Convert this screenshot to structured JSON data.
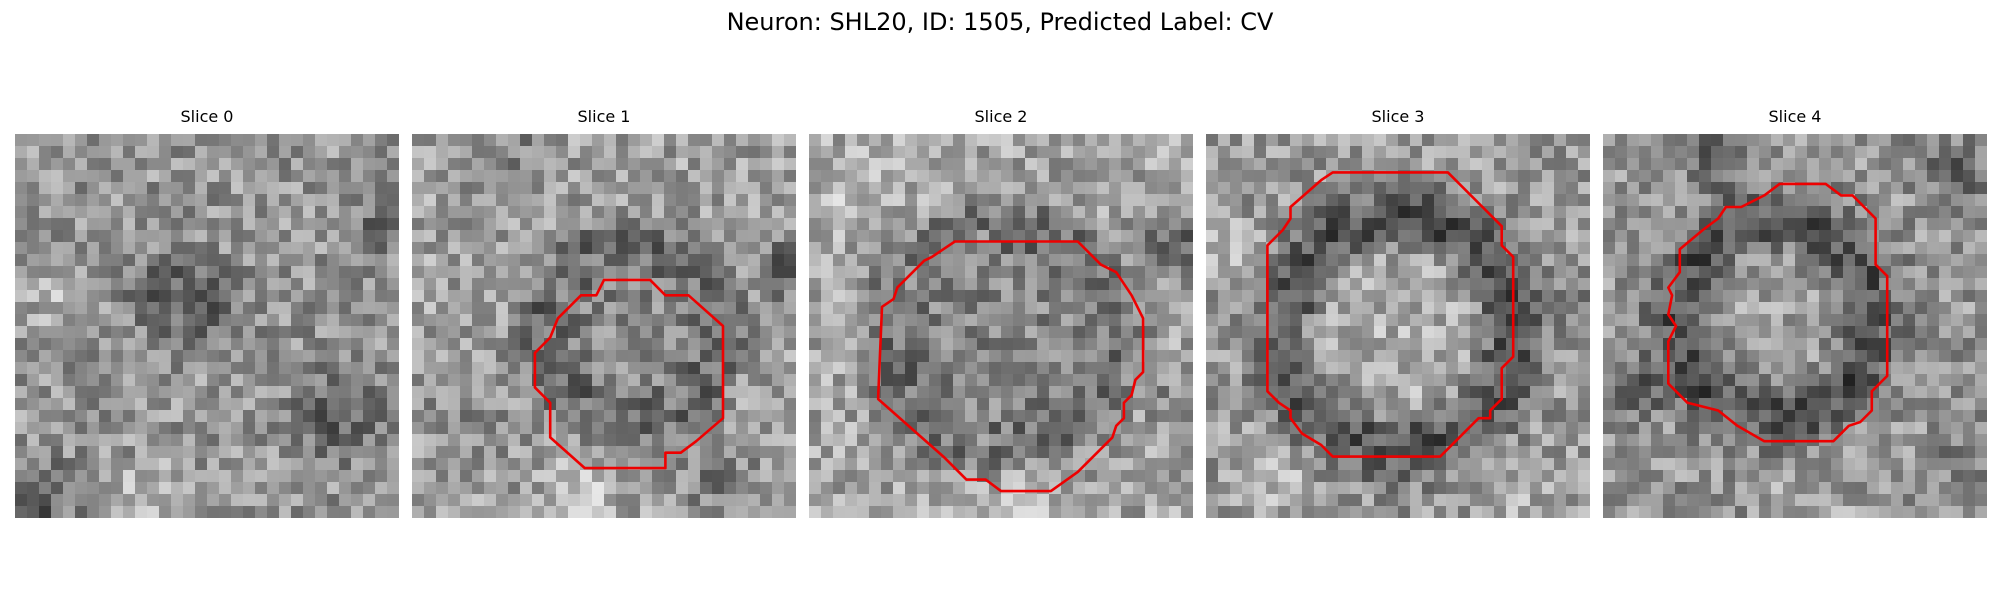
{
  "figure": {
    "title": "Neuron: SHL20, ID: 1505, Predicted Label: CV"
  },
  "colors": {
    "background": "#ffffff",
    "contour": "#ee0000",
    "image_colormap": "grayscale"
  },
  "panels": [
    {
      "title": "Slice 0",
      "image": "grayscale-em-crop",
      "has_contour": false
    },
    {
      "title": "Slice 1",
      "image": "grayscale-em-crop",
      "has_contour": true
    },
    {
      "title": "Slice 2",
      "image": "grayscale-em-crop",
      "has_contour": true
    },
    {
      "title": "Slice 3",
      "image": "grayscale-em-crop",
      "has_contour": true
    },
    {
      "title": "Slice 4",
      "image": "grayscale-em-crop",
      "has_contour": true
    }
  ]
}
